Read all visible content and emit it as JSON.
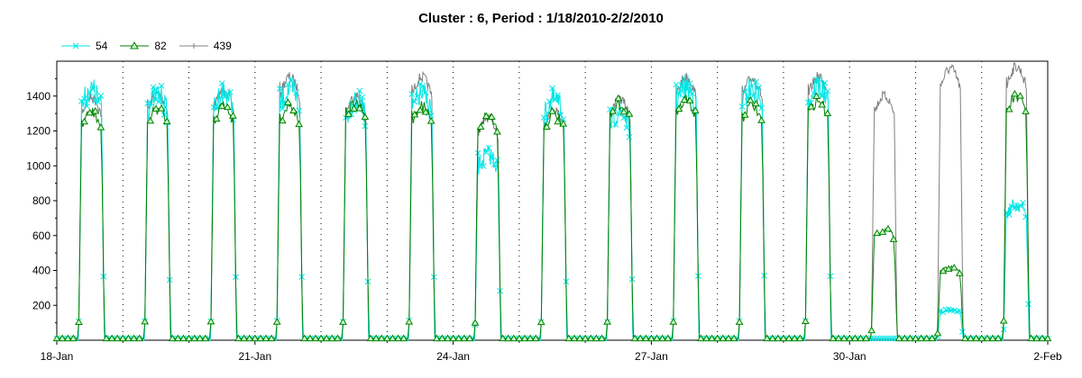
{
  "chart_data": {
    "type": "line",
    "title": "Cluster : 6, Period : 1/18/2010-2/2/2010",
    "xlabel": "",
    "ylabel": "",
    "ylim": [
      0,
      1600
    ],
    "y_ticks": [
      200,
      400,
      600,
      800,
      1000,
      1200,
      1400
    ],
    "x_ticks": [
      "18-Jan",
      "21-Jan",
      "24-Jan",
      "27-Jan",
      "30-Jan",
      "2-Feb"
    ],
    "x_range_days": [
      "2010-01-18",
      "2010-02-02"
    ],
    "grid": "vertical dotted",
    "legend_position": "top-left",
    "series": [
      {
        "name": "54",
        "color": "#00e5e5",
        "marker": "x",
        "daily_peak": [
          1510,
          1480,
          1500,
          1510,
          1450,
          1480,
          1120,
          1450,
          1380,
          1530,
          1520,
          1530,
          10,
          180,
          820
        ]
      },
      {
        "name": "82",
        "color": "#008000",
        "marker": "triangle",
        "daily_peak": [
          1340,
          1360,
          1380,
          1380,
          1390,
          1380,
          1320,
          1330,
          1390,
          1410,
          1380,
          1410,
          650,
          430,
          1430
        ]
      },
      {
        "name": "439",
        "color": "#808080",
        "marker": "plus",
        "daily_peak": [
          1420,
          1440,
          1460,
          1540,
          1430,
          1540,
          1300,
          1350,
          1410,
          1540,
          1530,
          1540,
          1430,
          1590,
          1600
        ]
      }
    ]
  }
}
